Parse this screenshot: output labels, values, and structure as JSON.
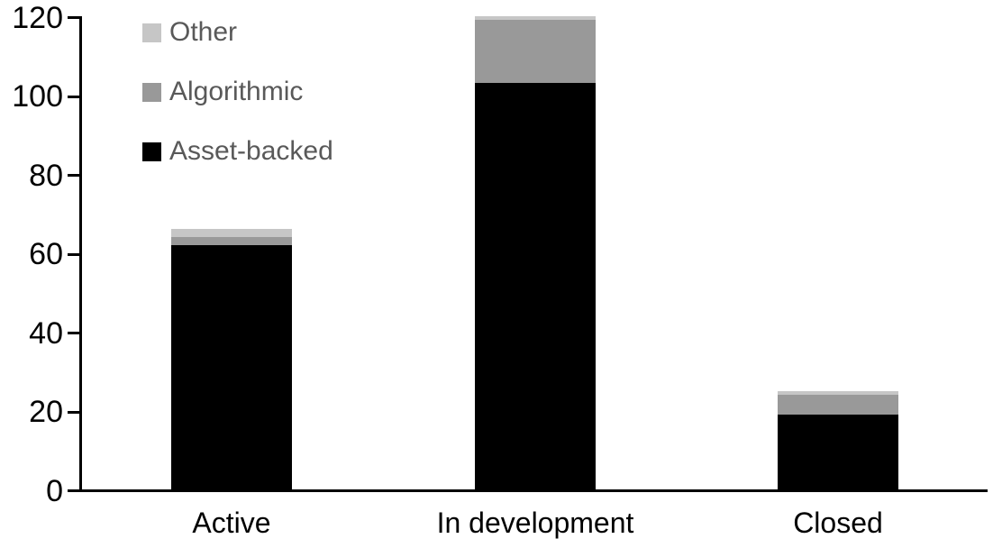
{
  "chart_data": {
    "type": "bar",
    "stacked": true,
    "title": "",
    "xlabel": "",
    "ylabel": "",
    "categories": [
      "Active",
      "In development",
      "Closed"
    ],
    "series": [
      {
        "name": "Asset-backed",
        "color": "#000000",
        "values": [
          62,
          103,
          19
        ]
      },
      {
        "name": "Algorithmic",
        "color": "#999999",
        "values": [
          2,
          16,
          5
        ]
      },
      {
        "name": "Other",
        "color": "#c6c6c6",
        "values": [
          2,
          1,
          1
        ]
      }
    ],
    "stack_totals": [
      66,
      120,
      25
    ],
    "ylim": [
      0,
      120
    ],
    "yticks": [
      0,
      20,
      40,
      60,
      80,
      100,
      120
    ],
    "grid": false,
    "legend": {
      "position": "top-left",
      "order": [
        "Other",
        "Algorithmic",
        "Asset-backed"
      ],
      "text_color": "#595959"
    },
    "axis_color": "#000000",
    "tick_label_color": "#000000",
    "background": "#ffffff"
  }
}
